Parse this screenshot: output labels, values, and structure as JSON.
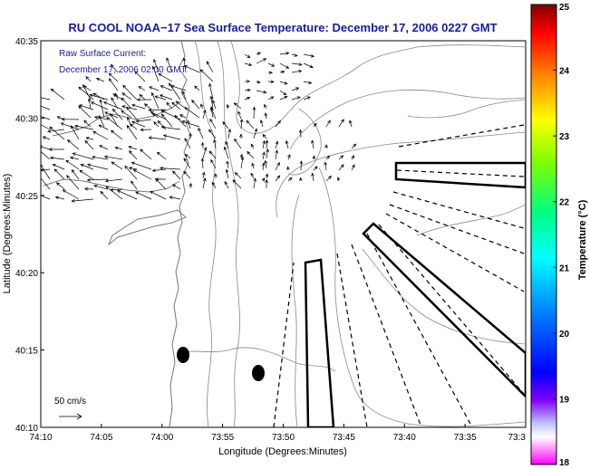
{
  "chart_data": {
    "type": "map",
    "title": "RU COOL  NOAA−17  Sea Surface Temperature:  December 17, 2006 0227 GMT",
    "annotation_lines": [
      "Raw Surface Current:",
      "December 17, 2006 02:00 GMT"
    ],
    "scale_label": "50 cm/s",
    "xlabel": "Longitude (Degrees:Minutes)",
    "ylabel": "Latitude (Degrees:Minutes)",
    "x_ticks": [
      "74:10",
      "74:05",
      "74:00",
      "73:55",
      "73:50",
      "73:45",
      "73:40",
      "73:35",
      "73:3"
    ],
    "y_ticks": [
      "40:35",
      "40:30",
      "40:25",
      "40:20",
      "40:15",
      "40:10"
    ],
    "x_range_deg": [
      -74.1667,
      -73.5
    ],
    "y_range_deg": [
      40.1667,
      40.5833
    ],
    "colorbar": {
      "label": "Temperature (°C)",
      "ticks": [
        "25",
        "24",
        "23",
        "22",
        "21",
        "20",
        "19",
        "18"
      ],
      "range": [
        18,
        25
      ],
      "colormap": "jet"
    },
    "current_vectors": {
      "count_shown": "approx 600",
      "region": "northwest quadrant (74:08-73:44 W, 40:25-40:33 N)",
      "max_speed_cm_s": 50
    },
    "colors": {
      "title": "#1a1aa8",
      "contour": "#888888",
      "outline": "#000000"
    }
  }
}
